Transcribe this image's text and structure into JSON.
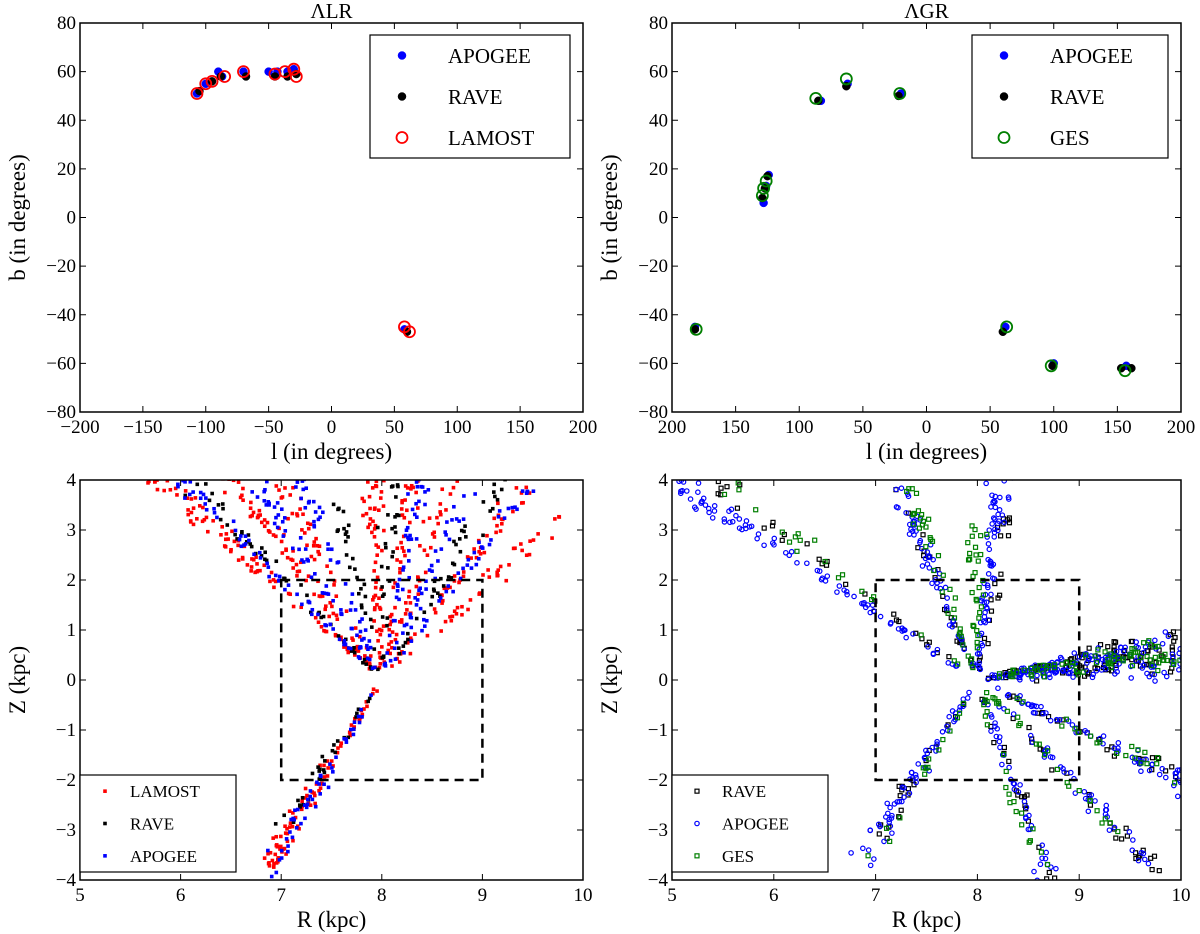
{
  "chart_data": [
    {
      "type": "scatter",
      "title": "ΛLR",
      "xlabel": "l (in degrees)",
      "ylabel": "b (in degrees)",
      "xlim": [
        -200,
        200
      ],
      "ylim": [
        -80,
        80
      ],
      "xticks": [
        -200,
        -150,
        -100,
        -50,
        0,
        50,
        100,
        150,
        200
      ],
      "xtick_labels": [
        "−200",
        "−150",
        "−100",
        "−50",
        "0",
        "50",
        "100",
        "150",
        "200"
      ],
      "yticks": [
        -80,
        -60,
        -40,
        -20,
        0,
        20,
        40,
        60,
        80
      ],
      "ytick_labels": [
        "−80",
        "−60",
        "−40",
        "−20",
        "0",
        "20",
        "40",
        "60",
        "80"
      ],
      "legend_position": "top-right",
      "series": [
        {
          "name": "APOGEE",
          "color": "#0000ff",
          "marker": "filled-circle",
          "points": [
            [
              -107,
              51
            ],
            [
              -100,
              55
            ],
            [
              -90,
              60
            ],
            [
              -87,
              58
            ],
            [
              -70,
              60
            ],
            [
              -50,
              60
            ],
            [
              -43,
              60
            ],
            [
              -35,
              60
            ],
            [
              -30,
              61
            ],
            [
              58,
              -46
            ]
          ]
        },
        {
          "name": "RAVE",
          "color": "#000000",
          "marker": "filled-circle",
          "points": [
            [
              -105,
              52
            ],
            [
              -95,
              56
            ],
            [
              -88,
              58
            ],
            [
              -68,
              58
            ],
            [
              -45,
              58
            ],
            [
              -35,
              58
            ],
            [
              -28,
              59
            ],
            [
              60,
              -47
            ]
          ]
        },
        {
          "name": "LAMOST",
          "color": "#ff0000",
          "marker": "open-circle",
          "points": [
            [
              -107,
              51
            ],
            [
              -100,
              55
            ],
            [
              -95,
              56
            ],
            [
              -85,
              58
            ],
            [
              -70,
              60
            ],
            [
              -45,
              59
            ],
            [
              -37,
              60
            ],
            [
              -30,
              61
            ],
            [
              -28,
              58
            ],
            [
              58,
              -45
            ],
            [
              62,
              -47
            ]
          ]
        }
      ]
    },
    {
      "type": "scatter",
      "title": "ΛGR",
      "xlabel": "l (in degrees)",
      "ylabel": "b (in degrees)",
      "xlim": [
        -200,
        200
      ],
      "ylim": [
        -80,
        80
      ],
      "xticks": [
        -200,
        -150,
        -100,
        -50,
        0,
        50,
        100,
        150,
        200
      ],
      "xtick_labels": [
        "200",
        "150",
        "100",
        "50",
        "0",
        "50",
        "100",
        "150",
        "200"
      ],
      "yticks": [
        -80,
        -60,
        -40,
        -20,
        0,
        20,
        40,
        60,
        80
      ],
      "ytick_labels": [
        "−80",
        "−60",
        "−40",
        "−20",
        "0",
        "20",
        "40",
        "60",
        "80"
      ],
      "legend_position": "top-right",
      "series": [
        {
          "name": "APOGEE",
          "color": "#0000ff",
          "marker": "filled-circle",
          "points": [
            [
              -83,
              48
            ],
            [
              -62,
              55
            ],
            [
              -20,
              51
            ],
            [
              -124,
              17.5
            ],
            [
              -126,
              13
            ],
            [
              -128,
              6
            ],
            [
              -182,
              -45
            ],
            [
              62,
              -45
            ],
            [
              100,
              -60
            ],
            [
              157,
              -61
            ]
          ]
        },
        {
          "name": "RAVE",
          "color": "#000000",
          "marker": "filled-circle",
          "points": [
            [
              -85,
              48
            ],
            [
              -63,
              54
            ],
            [
              -22,
              50
            ],
            [
              -125,
              17
            ],
            [
              -127,
              12
            ],
            [
              -129,
              8
            ],
            [
              -182,
              -46
            ],
            [
              60,
              -47
            ],
            [
              99,
              -61
            ],
            [
              153,
              -62
            ],
            [
              161,
              -62
            ]
          ]
        },
        {
          "name": "GES",
          "color": "#007f00",
          "marker": "open-circle",
          "points": [
            [
              -87,
              49
            ],
            [
              -63,
              57
            ],
            [
              -21,
              51
            ],
            [
              -126,
              15
            ],
            [
              -128,
              12
            ],
            [
              -129,
              9
            ],
            [
              -181,
              -46
            ],
            [
              63,
              -45
            ],
            [
              98,
              -61
            ],
            [
              156,
              -63
            ]
          ]
        }
      ]
    },
    {
      "type": "scatter",
      "title": "",
      "xlabel": "R (kpc)",
      "ylabel": "Z (kpc)",
      "xlim": [
        5,
        10
      ],
      "ylim": [
        -4,
        4
      ],
      "xticks": [
        5,
        6,
        7,
        8,
        9,
        10
      ],
      "xtick_labels": [
        "5",
        "6",
        "7",
        "8",
        "9",
        "10"
      ],
      "yticks": [
        -4,
        -3,
        -2,
        -1,
        0,
        1,
        2,
        3,
        4
      ],
      "ytick_labels": [
        "−4",
        "−3",
        "−2",
        "−1",
        "0",
        "1",
        "2",
        "3",
        "4"
      ],
      "legend_position": "bottom-left",
      "region_box": {
        "R": [
          7,
          9
        ],
        "Z": [
          -2,
          2
        ]
      },
      "origin": [
        8,
        0
      ],
      "series": [
        {
          "name": "LAMOST",
          "color": "#ff0000",
          "marker": "square",
          "rays": [
            [
              5.8,
              4,
              90
            ],
            [
              6.5,
              4,
              70
            ],
            [
              7.0,
              4,
              40
            ],
            [
              7.9,
              4,
              60
            ],
            [
              8.3,
              4,
              40
            ],
            [
              8.7,
              4,
              40
            ],
            [
              9.4,
              3.8,
              50
            ],
            [
              9.8,
              3.3,
              40
            ],
            [
              6.9,
              -3.6,
              90
            ]
          ]
        },
        {
          "name": "RAVE",
          "color": "#000000",
          "marker": "square",
          "rays": [
            [
              6.2,
              3.8,
              50
            ],
            [
              7.5,
              4,
              30
            ],
            [
              8.1,
              4,
              30
            ],
            [
              9.2,
              4,
              40
            ],
            [
              7.0,
              -3.0,
              30
            ]
          ]
        },
        {
          "name": "APOGEE",
          "color": "#0000ff",
          "marker": "square",
          "rays": [
            [
              6.0,
              4,
              60
            ],
            [
              6.8,
              3.8,
              50
            ],
            [
              7.2,
              4,
              40
            ],
            [
              8.4,
              4,
              40
            ],
            [
              8.9,
              4,
              40
            ],
            [
              9.5,
              4,
              40
            ],
            [
              6.9,
              -3.8,
              50
            ]
          ]
        }
      ]
    },
    {
      "type": "scatter",
      "title": "",
      "xlabel": "R (kpc)",
      "ylabel": "Z (kpc)",
      "xlim": [
        5,
        10
      ],
      "ylim": [
        -4,
        4
      ],
      "xticks": [
        5,
        6,
        7,
        8,
        9,
        10
      ],
      "xtick_labels": [
        "5",
        "6",
        "7",
        "8",
        "9",
        "10"
      ],
      "yticks": [
        -4,
        -3,
        -2,
        -1,
        0,
        1,
        2,
        3,
        4
      ],
      "ytick_labels": [
        "−4",
        "−3",
        "−2",
        "−1",
        "0",
        "1",
        "2",
        "3",
        "4"
      ],
      "legend_position": "bottom-left",
      "region_box": {
        "R": [
          7,
          9
        ],
        "Z": [
          -2,
          2
        ]
      },
      "origin": [
        8,
        0
      ],
      "series": [
        {
          "name": "RAVE",
          "color": "#000000",
          "marker": "open-square",
          "rays": [
            [
              5.5,
              3.8,
              30
            ],
            [
              7.2,
              4,
              25
            ],
            [
              8.3,
              3.2,
              20
            ],
            [
              10,
              0.9,
              40
            ],
            [
              10,
              0.6,
              40
            ],
            [
              10,
              0.3,
              30
            ],
            [
              10,
              -2,
              25
            ],
            [
              9.8,
              -3.9,
              25
            ],
            [
              8.7,
              -4,
              20
            ],
            [
              6.9,
              -3.5,
              20
            ]
          ]
        },
        {
          "name": "APOGEE",
          "color": "#0000ff",
          "marker": "open-circle",
          "rays": [
            [
              5.0,
              4,
              90
            ],
            [
              7.2,
              4,
              60
            ],
            [
              8.2,
              4,
              70
            ],
            [
              10,
              0.9,
              50
            ],
            [
              10,
              0.6,
              50
            ],
            [
              10,
              0.3,
              50
            ],
            [
              10,
              -2,
              60
            ],
            [
              9.8,
              -3.9,
              40
            ],
            [
              8.7,
              -4,
              40
            ],
            [
              6.9,
              -3.5,
              60
            ]
          ]
        },
        {
          "name": "GES",
          "color": "#007f00",
          "marker": "open-square",
          "rays": [
            [
              5.6,
              3.8,
              20
            ],
            [
              7.3,
              4,
              40
            ],
            [
              8.0,
              3.0,
              30
            ],
            [
              10,
              0.8,
              40
            ],
            [
              10,
              0.5,
              40
            ],
            [
              10,
              -2,
              20
            ],
            [
              9.6,
              -3.5,
              25
            ],
            [
              8.6,
              -3.8,
              20
            ],
            [
              7.0,
              -3.6,
              15
            ]
          ]
        }
      ]
    }
  ]
}
